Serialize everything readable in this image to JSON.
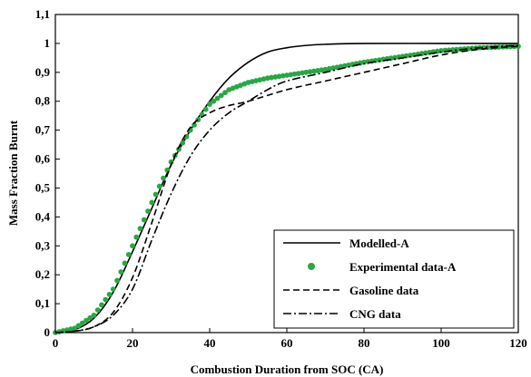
{
  "chart_data": {
    "type": "line",
    "title": "",
    "xlabel": "Combustion Duration from SOC (CA)",
    "ylabel": "Mass Fraction Burnt",
    "xlim": [
      0,
      120
    ],
    "ylim": [
      0,
      1.1
    ],
    "xticks": [
      "0",
      "20",
      "40",
      "60",
      "80",
      "100",
      "120"
    ],
    "yticks": [
      "0",
      "0,1",
      "0,2",
      "0,3",
      "0,4",
      "0,5",
      "0,6",
      "0,7",
      "0,8",
      "0,9",
      "1",
      "1,1"
    ],
    "grid": false,
    "legend_position": "bottom-right",
    "series": [
      {
        "name": "Modelled-A",
        "style": "solid",
        "color": "#000000",
        "points": [
          [
            0,
            0
          ],
          [
            5,
            0.01
          ],
          [
            10,
            0.05
          ],
          [
            15,
            0.14
          ],
          [
            20,
            0.28
          ],
          [
            25,
            0.43
          ],
          [
            30,
            0.58
          ],
          [
            35,
            0.7
          ],
          [
            40,
            0.8
          ],
          [
            45,
            0.88
          ],
          [
            50,
            0.935
          ],
          [
            55,
            0.97
          ],
          [
            60,
            0.985
          ],
          [
            65,
            0.993
          ],
          [
            70,
            0.997
          ],
          [
            80,
            1.0
          ],
          [
            100,
            1.0
          ],
          [
            120,
            1.0
          ]
        ]
      },
      {
        "name": "Experimental data-A",
        "style": "markers",
        "color": "#27a844",
        "points": [
          [
            0,
            0
          ],
          [
            5,
            0.015
          ],
          [
            10,
            0.06
          ],
          [
            15,
            0.15
          ],
          [
            20,
            0.3
          ],
          [
            25,
            0.45
          ],
          [
            30,
            0.59
          ],
          [
            35,
            0.7
          ],
          [
            40,
            0.79
          ],
          [
            45,
            0.84
          ],
          [
            50,
            0.865
          ],
          [
            55,
            0.88
          ],
          [
            60,
            0.89
          ],
          [
            70,
            0.91
          ],
          [
            80,
            0.935
          ],
          [
            90,
            0.955
          ],
          [
            100,
            0.975
          ],
          [
            110,
            0.985
          ],
          [
            120,
            0.99
          ]
        ]
      },
      {
        "name": "Gasoline data",
        "style": "dashed",
        "color": "#000000",
        "points": [
          [
            0,
            0
          ],
          [
            5,
            0.005
          ],
          [
            10,
            0.02
          ],
          [
            15,
            0.07
          ],
          [
            20,
            0.19
          ],
          [
            25,
            0.38
          ],
          [
            30,
            0.58
          ],
          [
            35,
            0.71
          ],
          [
            40,
            0.76
          ],
          [
            45,
            0.785
          ],
          [
            50,
            0.8
          ],
          [
            60,
            0.84
          ],
          [
            70,
            0.87
          ],
          [
            80,
            0.9
          ],
          [
            90,
            0.93
          ],
          [
            100,
            0.96
          ],
          [
            110,
            0.98
          ],
          [
            120,
            0.99
          ]
        ]
      },
      {
        "name": "CNG data",
        "style": "dashdot",
        "color": "#000000",
        "points": [
          [
            0,
            0
          ],
          [
            5,
            0.005
          ],
          [
            10,
            0.02
          ],
          [
            15,
            0.06
          ],
          [
            20,
            0.15
          ],
          [
            25,
            0.32
          ],
          [
            30,
            0.48
          ],
          [
            35,
            0.61
          ],
          [
            40,
            0.7
          ],
          [
            45,
            0.76
          ],
          [
            50,
            0.8
          ],
          [
            55,
            0.84
          ],
          [
            60,
            0.87
          ],
          [
            70,
            0.9
          ],
          [
            80,
            0.93
          ],
          [
            90,
            0.95
          ],
          [
            100,
            0.97
          ],
          [
            110,
            0.985
          ],
          [
            120,
            0.993
          ]
        ]
      }
    ]
  }
}
